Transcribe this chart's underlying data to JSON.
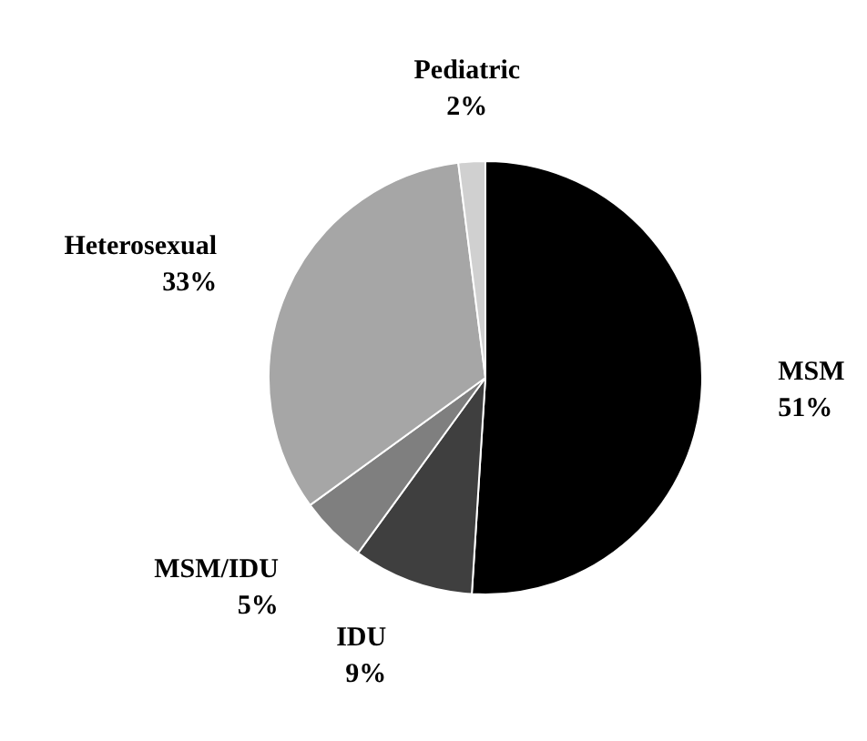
{
  "chart_data": {
    "type": "pie",
    "categories": [
      "MSM",
      "IDU",
      "MSM/IDU",
      "Heterosexual",
      "Pediatric"
    ],
    "values": [
      51,
      9,
      5,
      33,
      2
    ],
    "colors": [
      "#000000",
      "#3f3f3f",
      "#7f7f7f",
      "#a6a6a6",
      "#d0d0d0"
    ],
    "value_labels": [
      "51%",
      "9%",
      "5%",
      "33%",
      "2%"
    ]
  }
}
